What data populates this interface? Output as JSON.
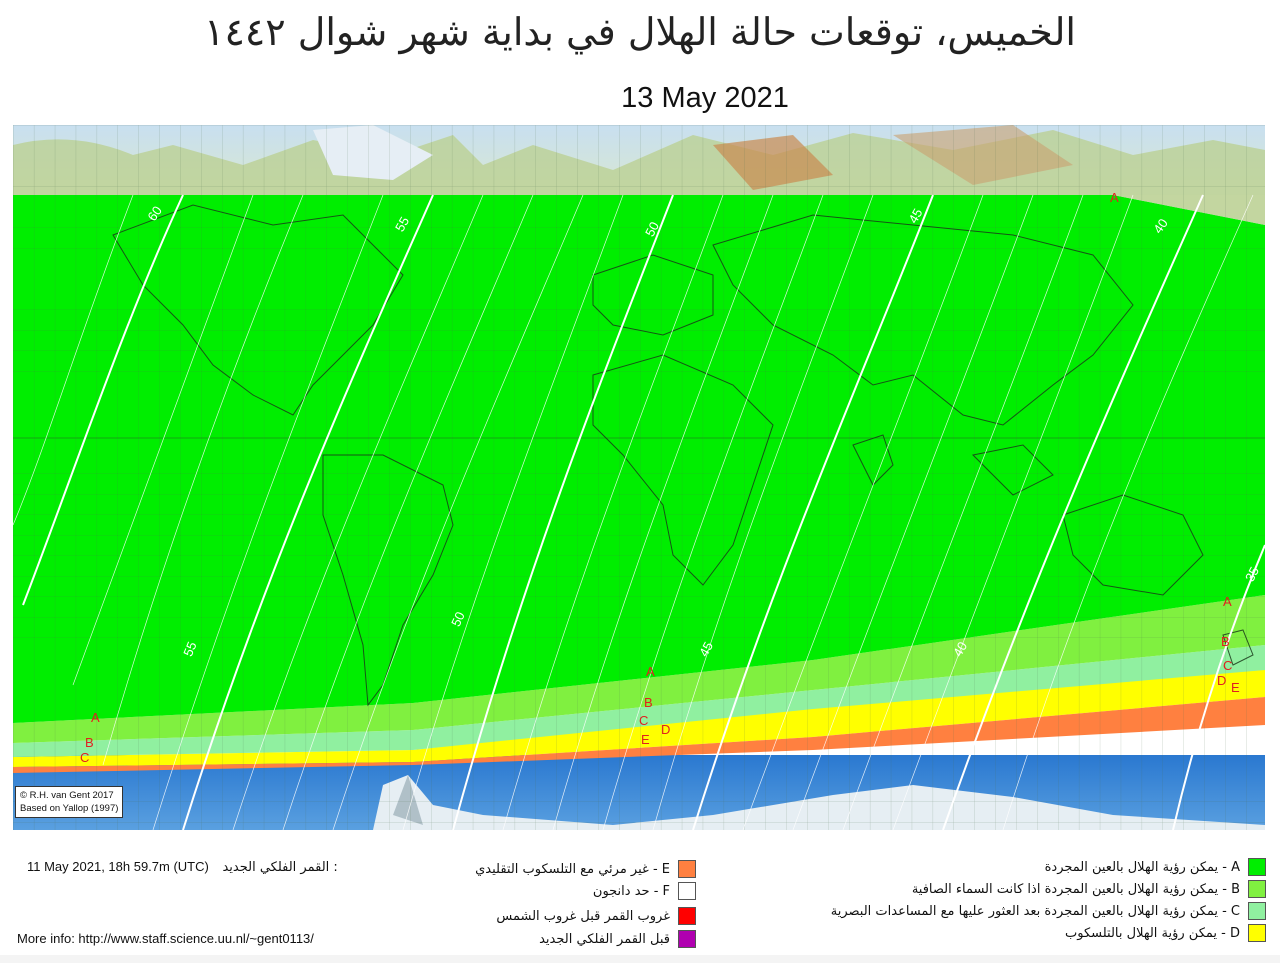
{
  "header": {
    "title": "الخميس، توقعات حالة الهلال في بداية شهر شوال ١٤٤٢",
    "date": "13 May 2021"
  },
  "map": {
    "zone_colors": {
      "A": "#00ee00",
      "B": "#80f040",
      "C": "#90f0a0",
      "D": "#ffff00",
      "E": "#ff8040",
      "F": "#ffffff",
      "sunset": "#ff0000",
      "conjunction": "#b000b0"
    },
    "contour_labels": [
      "60",
      "55",
      "50",
      "45",
      "40",
      "55",
      "50",
      "45",
      "40",
      "35"
    ],
    "zone_letters": [
      "A",
      "B",
      "C",
      "D",
      "E"
    ],
    "credit_line1": "© R.H. van Gent 2017",
    "credit_line2": "Based on Yallop (1997)"
  },
  "legend": {
    "A": "A - يمكن رؤية الهلال بالعين المجردة",
    "B": "B - يمكن رؤية الهلال بالعين المجردة اذا كانت السماء الصافية",
    "C": "C - يمكن رؤية الهلال بالعين المجردة بعد العثور عليها مع المساعدات البصرية",
    "D": "D - يمكن رؤية الهلال بالتلسكوب",
    "E": "E - غير مرئي مع التلسكوب التقليدي",
    "F": "F - حد دانجون",
    "sunset": "غروب القمر قبل غروب الشمس",
    "conjunction": "قبل القمر الفلكي الجديد"
  },
  "info": {
    "new_moon_label": "القمر الفلكي الجديد :",
    "new_moon_time": "11 May 2021, 18h 59.7m (UTC)",
    "more_info": "More info: http://www.staff.science.uu.nl/~gent0113/"
  }
}
